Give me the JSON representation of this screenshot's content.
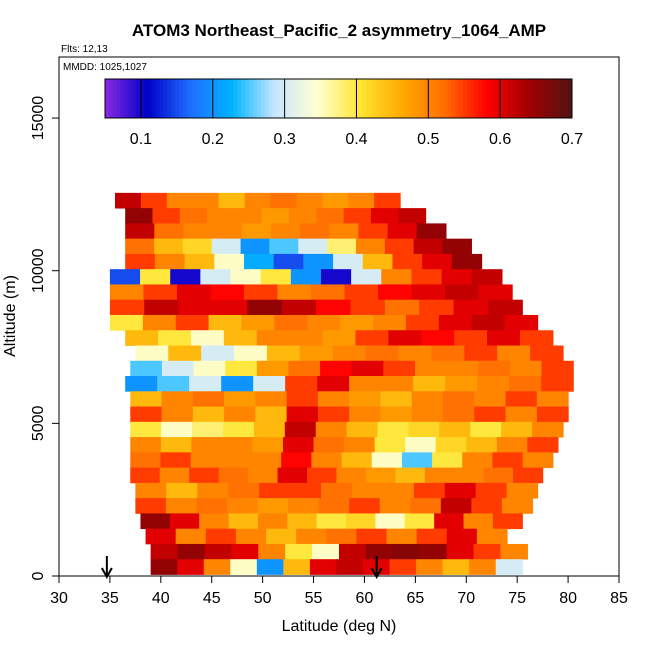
{
  "chart_data": {
    "type": "heatmap",
    "title": "ATOM3 Northeast_Pacific_2 asymmetry_1064_AMP",
    "flights_label": "Flts: 12,13",
    "dates_label": "MMDD: 1025,1027",
    "xlabel": "Latitude (deg N)",
    "ylabel": "Altitude (m)",
    "xlim": [
      30,
      85
    ],
    "ylim": [
      0,
      17000
    ],
    "x_ticks": [
      30,
      35,
      40,
      45,
      50,
      55,
      60,
      65,
      70,
      75,
      80,
      85
    ],
    "y_ticks": [
      0,
      5000,
      10000,
      15000
    ],
    "x_tick_labels": [
      "30",
      "35",
      "40",
      "45",
      "50",
      "55",
      "60",
      "65",
      "70",
      "75",
      "80",
      "85"
    ],
    "y_tick_labels": [
      "0",
      "5000",
      "10000",
      "15000"
    ],
    "colorbar": {
      "range": [
        0.05,
        0.7
      ],
      "ticks": [
        0.1,
        0.2,
        0.3,
        0.4,
        0.5,
        0.6,
        0.7
      ],
      "tick_labels": [
        "0.1",
        "0.2",
        "0.3",
        "0.4",
        "0.5",
        "0.6",
        "0.7"
      ],
      "colors": [
        "#8a2be2",
        "#0000c8",
        "#1e6eff",
        "#00b4ff",
        "#c8e6ff",
        "#ffffd2",
        "#ffe632",
        "#ffaa00",
        "#ff6e00",
        "#ff0000",
        "#a00000",
        "#501414"
      ]
    },
    "arrows_latitude": [
      34.7,
      61.2
    ],
    "bands": [
      {
        "alt": 12300,
        "lat": [
          35.5,
          63.5
        ],
        "values": [
          0.62,
          0.55,
          0.5,
          0.5,
          0.45,
          0.5,
          0.52,
          0.5,
          0.48,
          0.5,
          0.55
        ]
      },
      {
        "alt": 11800,
        "lat": [
          36.5,
          66.0
        ],
        "values": [
          0.65,
          0.55,
          0.52,
          0.5,
          0.5,
          0.48,
          0.5,
          0.52,
          0.55,
          0.6,
          0.62
        ]
      },
      {
        "alt": 11300,
        "lat": [
          36.5,
          68.0
        ],
        "values": [
          0.62,
          0.52,
          0.5,
          0.5,
          0.48,
          0.5,
          0.52,
          0.5,
          0.55,
          0.6,
          0.65
        ]
      },
      {
        "alt": 10800,
        "lat": [
          36.5,
          70.5
        ],
        "values": [
          0.52,
          0.45,
          0.42,
          0.3,
          0.2,
          0.25,
          0.3,
          0.38,
          0.5,
          0.55,
          0.62,
          0.65
        ]
      },
      {
        "alt": 10300,
        "lat": [
          36.5,
          71.5
        ],
        "values": [
          0.55,
          0.5,
          0.45,
          0.35,
          0.22,
          0.15,
          0.2,
          0.3,
          0.45,
          0.55,
          0.6,
          0.65
        ]
      },
      {
        "alt": 9800,
        "lat": [
          35.0,
          73.5
        ],
        "values": [
          0.15,
          0.4,
          0.1,
          0.3,
          0.35,
          0.4,
          0.2,
          0.1,
          0.3,
          0.5,
          0.55,
          0.6,
          0.62
        ]
      },
      {
        "alt": 9300,
        "lat": [
          35.0,
          74.5
        ],
        "values": [
          0.5,
          0.55,
          0.6,
          0.58,
          0.55,
          0.5,
          0.52,
          0.55,
          0.58,
          0.6,
          0.62,
          0.6
        ]
      },
      {
        "alt": 8800,
        "lat": [
          35.0,
          75.5
        ],
        "values": [
          0.55,
          0.62,
          0.6,
          0.6,
          0.65,
          0.62,
          0.58,
          0.55,
          0.52,
          0.55,
          0.6,
          0.62
        ]
      },
      {
        "alt": 8300,
        "lat": [
          35.0,
          77.0
        ],
        "values": [
          0.4,
          0.5,
          0.55,
          0.45,
          0.48,
          0.52,
          0.5,
          0.48,
          0.5,
          0.55,
          0.6,
          0.62,
          0.6
        ]
      },
      {
        "alt": 7800,
        "lat": [
          36.5,
          78.5
        ],
        "values": [
          0.45,
          0.4,
          0.35,
          0.45,
          0.5,
          0.5,
          0.48,
          0.55,
          0.6,
          0.58,
          0.55,
          0.6,
          0.55
        ]
      },
      {
        "alt": 7300,
        "lat": [
          37.5,
          79.5
        ],
        "values": [
          0.35,
          0.45,
          0.3,
          0.35,
          0.45,
          0.48,
          0.5,
          0.52,
          0.5,
          0.52,
          0.55,
          0.5,
          0.55
        ]
      },
      {
        "alt": 6800,
        "lat": [
          37.0,
          80.5
        ],
        "values": [
          0.25,
          0.3,
          0.35,
          0.4,
          0.48,
          0.52,
          0.58,
          0.6,
          0.55,
          0.5,
          0.5,
          0.52,
          0.5,
          0.55
        ]
      },
      {
        "alt": 6300,
        "lat": [
          36.5,
          80.5
        ],
        "values": [
          0.2,
          0.25,
          0.3,
          0.2,
          0.3,
          0.55,
          0.6,
          0.5,
          0.5,
          0.45,
          0.48,
          0.5,
          0.52,
          0.55
        ]
      },
      {
        "alt": 5800,
        "lat": [
          37.0,
          80.0
        ],
        "values": [
          0.45,
          0.5,
          0.52,
          0.48,
          0.5,
          0.55,
          0.5,
          0.48,
          0.45,
          0.5,
          0.52,
          0.5,
          0.55,
          0.5
        ]
      },
      {
        "alt": 5300,
        "lat": [
          37.0,
          80.0
        ],
        "values": [
          0.55,
          0.5,
          0.45,
          0.5,
          0.45,
          0.6,
          0.55,
          0.5,
          0.48,
          0.5,
          0.52,
          0.55,
          0.5,
          0.55
        ]
      },
      {
        "alt": 4800,
        "lat": [
          37.0,
          79.5
        ],
        "values": [
          0.4,
          0.35,
          0.38,
          0.4,
          0.45,
          0.62,
          0.5,
          0.45,
          0.4,
          0.42,
          0.45,
          0.4,
          0.45,
          0.5
        ]
      },
      {
        "alt": 4300,
        "lat": [
          37.0,
          79.0
        ],
        "values": [
          0.5,
          0.45,
          0.5,
          0.5,
          0.48,
          0.6,
          0.52,
          0.5,
          0.4,
          0.35,
          0.42,
          0.45,
          0.5,
          0.55
        ]
      },
      {
        "alt": 3800,
        "lat": [
          37.0,
          78.5
        ],
        "values": [
          0.52,
          0.55,
          0.5,
          0.5,
          0.5,
          0.58,
          0.5,
          0.45,
          0.35,
          0.25,
          0.4,
          0.5,
          0.55,
          0.5
        ]
      },
      {
        "alt": 3300,
        "lat": [
          37.0,
          77.5
        ],
        "values": [
          0.55,
          0.5,
          0.55,
          0.52,
          0.5,
          0.6,
          0.55,
          0.5,
          0.48,
          0.45,
          0.5,
          0.5,
          0.52,
          0.55
        ]
      },
      {
        "alt": 2800,
        "lat": [
          37.5,
          77.0
        ],
        "values": [
          0.5,
          0.45,
          0.5,
          0.52,
          0.55,
          0.55,
          0.52,
          0.5,
          0.5,
          0.55,
          0.6,
          0.55,
          0.5
        ]
      },
      {
        "alt": 2300,
        "lat": [
          37.5,
          76.5
        ],
        "values": [
          0.55,
          0.5,
          0.52,
          0.5,
          0.48,
          0.5,
          0.52,
          0.55,
          0.5,
          0.52,
          0.62,
          0.55,
          0.5
        ]
      },
      {
        "alt": 1800,
        "lat": [
          38.0,
          75.5
        ],
        "values": [
          0.65,
          0.6,
          0.5,
          0.45,
          0.5,
          0.45,
          0.4,
          0.42,
          0.35,
          0.4,
          0.6,
          0.5,
          0.55
        ]
      },
      {
        "alt": 1300,
        "lat": [
          38.5,
          74.0
        ],
        "values": [
          0.6,
          0.5,
          0.55,
          0.5,
          0.45,
          0.5,
          0.52,
          0.55,
          0.5,
          0.55,
          0.6,
          0.5
        ]
      },
      {
        "alt": 800,
        "lat": [
          39.0,
          76.0
        ],
        "values": [
          0.62,
          0.65,
          0.62,
          0.6,
          0.5,
          0.4,
          0.35,
          0.62,
          0.65,
          0.66,
          0.65,
          0.6,
          0.55,
          0.5
        ]
      },
      {
        "alt": 300,
        "lat": [
          39.0,
          75.5
        ],
        "values": [
          0.65,
          0.6,
          0.5,
          0.35,
          0.2,
          0.45,
          0.6,
          0.62,
          0.6,
          0.55,
          0.5,
          0.45,
          0.5,
          0.3
        ]
      }
    ]
  }
}
